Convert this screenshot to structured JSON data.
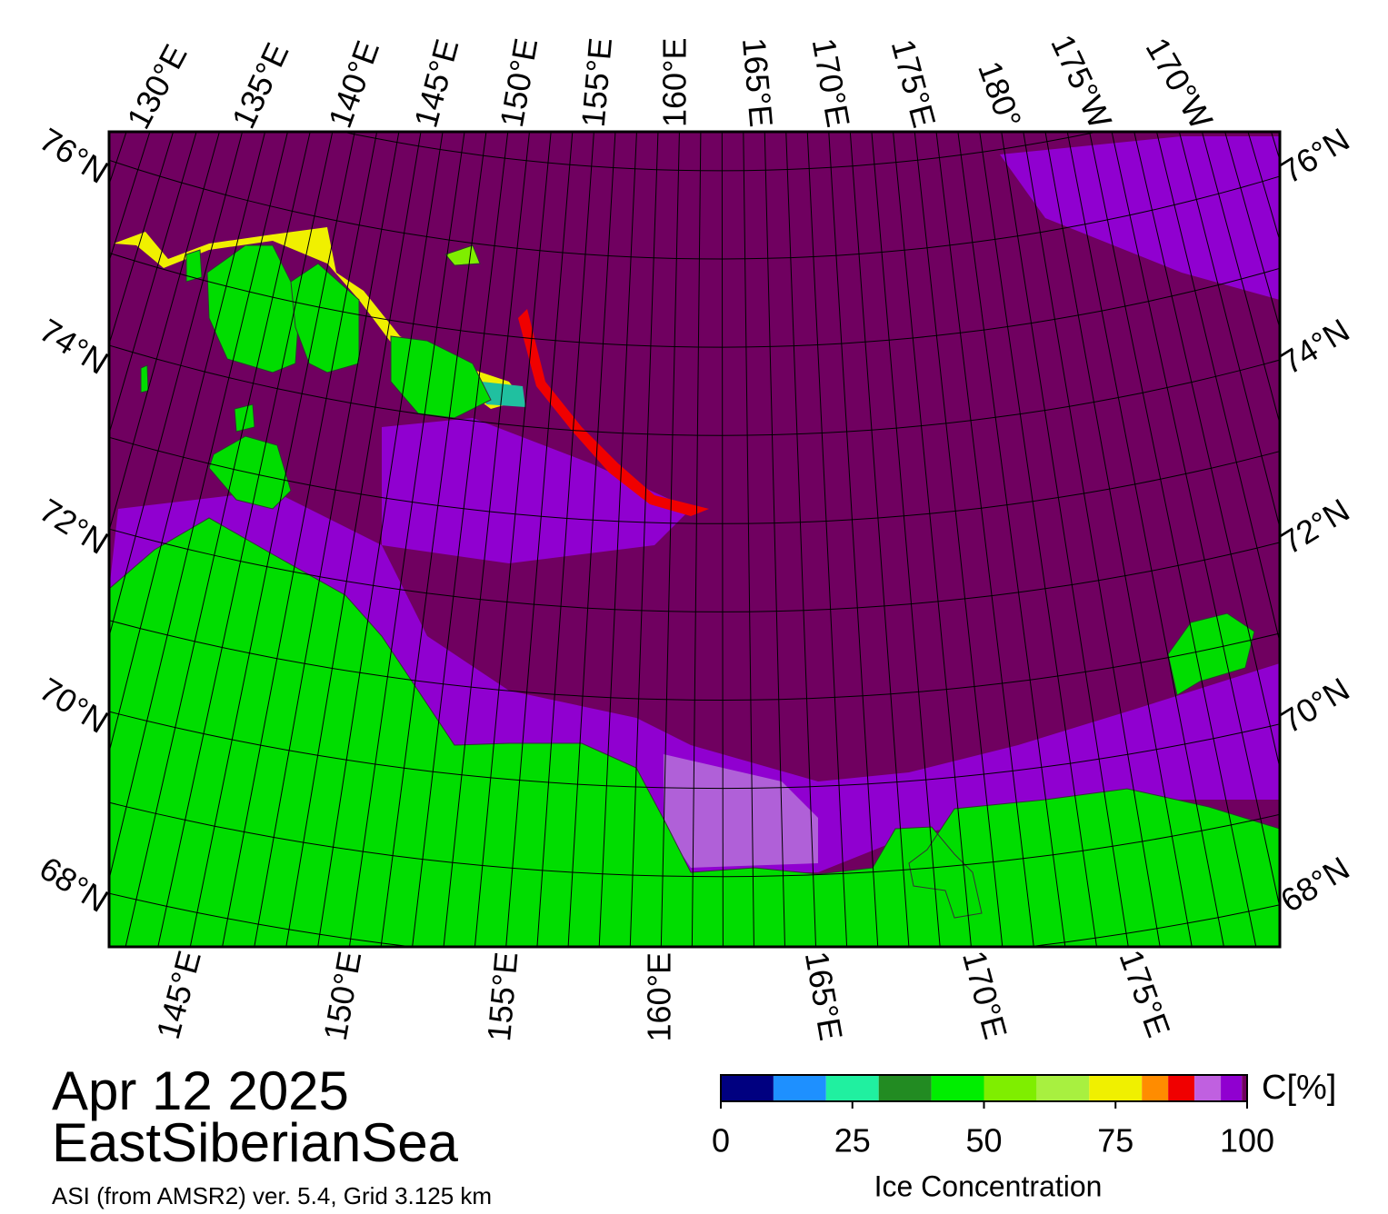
{
  "map": {
    "top_labels": [
      "130°E",
      "135°E",
      "140°E",
      "145°E",
      "150°E",
      "155°E",
      "160°E",
      "165°E",
      "170°E",
      "175°E",
      "180°",
      "175°W",
      "170°W"
    ],
    "bottom_labels": [
      "145°E",
      "150°E",
      "155°E",
      "160°E",
      "165°E",
      "170°E",
      "175°E"
    ],
    "left_labels": [
      "76°N",
      "74°N",
      "72°N",
      "70°N",
      "68°N"
    ],
    "right_labels": [
      "76°N",
      "74°N",
      "72°N",
      "70°N",
      "68°N"
    ]
  },
  "date": "Apr 12 2025",
  "region": "EastSiberianSea",
  "subtitle": "ASI (from AMSR2) ver. 5.4,  Grid 3.125 km",
  "colorbar": {
    "title": "Ice Concentration",
    "unit": "C[%]",
    "lim": [
      0,
      100
    ],
    "ticks": [
      0,
      25,
      50,
      75,
      100
    ],
    "bins": [
      0,
      10,
      20,
      30,
      40,
      50,
      60,
      70,
      80,
      85,
      90,
      95,
      99,
      100
    ],
    "colors": [
      "#000080",
      "#1e90ff",
      "#20f0a0",
      "#228b22",
      "#00ee00",
      "#7fee00",
      "#a8f040",
      "#f0f000",
      "#ff8c00",
      "#f00000",
      "#c060e0",
      "#9000d0",
      "#700060"
    ]
  }
}
